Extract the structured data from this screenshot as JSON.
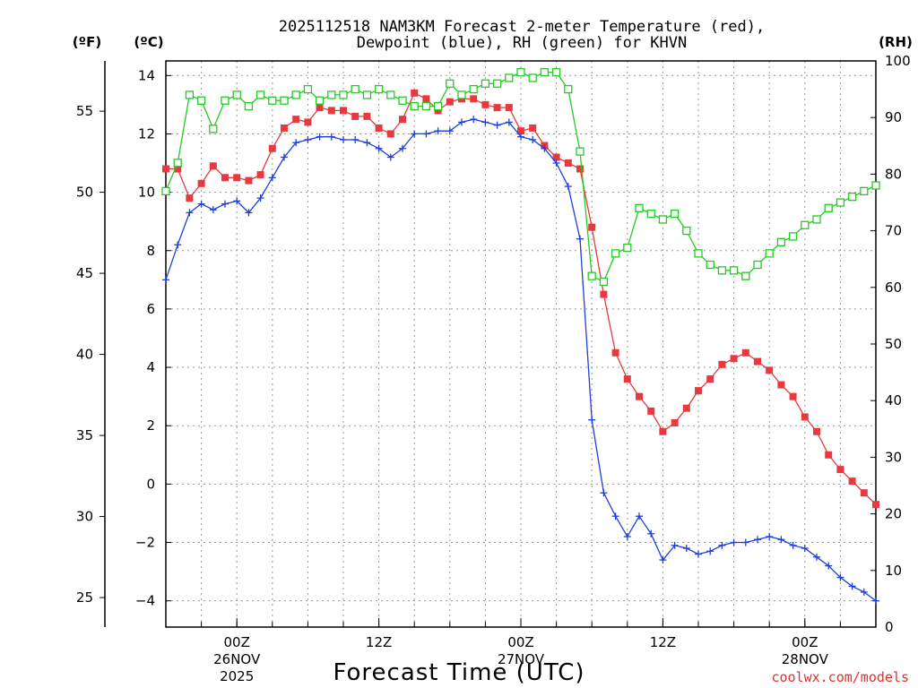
{
  "chart_data": {
    "type": "line",
    "title_line1": "2025112518 NAM3KM Forecast 2-meter Temperature (red),",
    "title_line2": "Dewpoint (blue), RH (green) for KHVN",
    "unit_f": "(ºF)",
    "unit_c": "(ºC)",
    "unit_rh": "(RH)",
    "xlabel": "Forecast Time (UTC)",
    "credit": "coolwx.com/models",
    "celsius_ticks": [
      "14",
      "12",
      "10",
      "8",
      "6",
      "4",
      "2",
      "0",
      "−2",
      "−4"
    ],
    "celsius_tick_values": [
      14,
      12,
      10,
      8,
      6,
      4,
      2,
      0,
      -2,
      -4
    ],
    "fahrenheit_ticks": [
      "55",
      "50",
      "45",
      "40",
      "35",
      "30",
      "25"
    ],
    "fahrenheit_tick_values": [
      55,
      50,
      45,
      40,
      35,
      30,
      25
    ],
    "rh_ticks": [
      "100",
      "90",
      "80",
      "70",
      "60",
      "50",
      "40",
      "30",
      "20",
      "10",
      "0"
    ],
    "rh_tick_values": [
      100,
      90,
      80,
      70,
      60,
      50,
      40,
      30,
      20,
      10,
      0
    ],
    "x_ticks": [
      {
        "hour": 6,
        "line1": "00Z",
        "line2": "26NOV",
        "line3": "2025"
      },
      {
        "hour": 18,
        "line1": "12Z",
        "line2": "",
        "line3": ""
      },
      {
        "hour": 30,
        "line1": "00Z",
        "line2": "27NOV",
        "line3": ""
      },
      {
        "hour": 42,
        "line1": "12Z",
        "line2": "",
        "line3": ""
      },
      {
        "hour": 54,
        "line1": "00Z",
        "line2": "28NOV",
        "line3": ""
      }
    ],
    "x_range": [
      0,
      60
    ],
    "celsius_range": [
      -4.9,
      14.5
    ],
    "rh_range": [
      0,
      100
    ],
    "series": [
      {
        "name": "Temperature",
        "color": "#e8393f",
        "marker": "filled-square",
        "axis": "celsius",
        "values": [
          10.8,
          10.8,
          9.8,
          10.3,
          10.9,
          10.5,
          10.5,
          10.4,
          10.6,
          11.5,
          12.2,
          12.5,
          12.4,
          12.9,
          12.8,
          12.8,
          12.6,
          12.6,
          12.2,
          12.0,
          12.5,
          13.4,
          13.2,
          12.8,
          13.1,
          13.2,
          13.2,
          13.0,
          12.9,
          12.9,
          12.1,
          12.2,
          11.6,
          11.2,
          11.0,
          10.8,
          8.8,
          6.5,
          4.5,
          3.6,
          3.0,
          2.5,
          1.8,
          2.1,
          2.6,
          3.2,
          3.6,
          4.1,
          4.3,
          4.5,
          4.2,
          3.9,
          3.4,
          3.0,
          2.3,
          1.8,
          1.0,
          0.5,
          0.1,
          -0.3,
          -0.7
        ]
      },
      {
        "name": "Dewpoint",
        "color": "#1f3fdd",
        "marker": "plus",
        "axis": "celsius",
        "values": [
          7.0,
          8.2,
          9.3,
          9.6,
          9.4,
          9.6,
          9.7,
          9.3,
          9.8,
          10.5,
          11.2,
          11.7,
          11.8,
          11.9,
          11.9,
          11.8,
          11.8,
          11.7,
          11.5,
          11.2,
          11.5,
          12.0,
          12.0,
          12.1,
          12.1,
          12.4,
          12.5,
          12.4,
          12.3,
          12.4,
          11.9,
          11.8,
          11.5,
          11.0,
          10.2,
          8.4,
          2.2,
          -0.3,
          -1.1,
          -1.8,
          -1.1,
          -1.7,
          -2.6,
          -2.1,
          -2.2,
          -2.4,
          -2.3,
          -2.1,
          -2.0,
          -2.0,
          -1.9,
          -1.8,
          -1.9,
          -2.1,
          -2.2,
          -2.5,
          -2.8,
          -3.2,
          -3.5,
          -3.7,
          -4.0
        ]
      },
      {
        "name": "RH",
        "color": "#22cc22",
        "marker": "open-square",
        "axis": "rh",
        "values": [
          77,
          82,
          94,
          93,
          88,
          93,
          94,
          92,
          94,
          93,
          93,
          94,
          95,
          93,
          94,
          94,
          95,
          94,
          95,
          94,
          93,
          92,
          92,
          92,
          96,
          94,
          95,
          96,
          96,
          97,
          98,
          97,
          98,
          98,
          95,
          84,
          62,
          61,
          66,
          67,
          74,
          73,
          72,
          73,
          70,
          66,
          64,
          63,
          63,
          62,
          64,
          66,
          68,
          69,
          71,
          72,
          74,
          75,
          76,
          77,
          78
        ]
      }
    ]
  }
}
